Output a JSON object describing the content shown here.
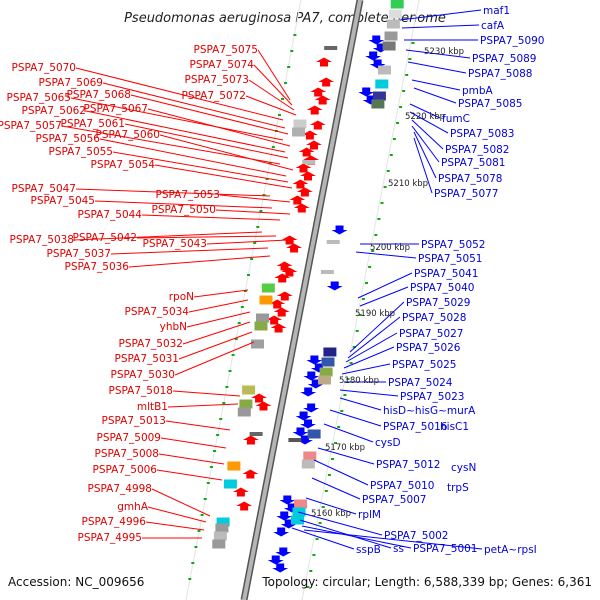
{
  "title": "Pseudomonas aeruginosa PA7, complete genome",
  "footer": {
    "accession": "Accession: NC_009656",
    "summary": "Topology: circular; Length: 6,588,339 bp; Genes: 6,361"
  },
  "colors": {
    "left_strand": "#ff0000",
    "right_strand": "#0000ff",
    "backbone": "#888888",
    "tick": "#11aa11"
  },
  "kbp_markers": [
    "5160 kbp",
    "5170 kbp",
    "5180 kbp",
    "5190 kbp",
    "5200 kbp",
    "5210 kbp",
    "5220 kbp",
    "5230 kbp"
  ],
  "left_labels": [
    "PSPA7_5075",
    "PSPA7_5074",
    "PSPA7_5073",
    "PSPA7_5072",
    "PSPA7_5070",
    "PSPA7_5069",
    "PSPA7_5068",
    "PSPA7_5065",
    "PSPA7_5067",
    "PSPA7_5062",
    "PSPA7_5061",
    "PSPA7_5057",
    "PSPA7_5060",
    "PSPA7_5056",
    "PSPA7_5055",
    "PSPA7_5054",
    "PSPA7_5047",
    "PSPA7_5053",
    "PSPA7_5045",
    "PSPA7_5050",
    "PSPA7_5044",
    "PSPA7_5038",
    "PSPA7_5042",
    "PSPA7_5043",
    "PSPA7_5037",
    "PSPA7_5036",
    "rpoN",
    "PSPA7_5034",
    "yhbN",
    "PSPA7_5032",
    "PSPA7_5031",
    "PSPA7_5030",
    "PSPA7_5018",
    "mltB1",
    "PSPA7_5013",
    "PSPA7_5009",
    "PSPA7_5008",
    "PSPA7_5006",
    "PSPA7_4998",
    "gmhA",
    "PSPA7_4996",
    "PSPA7_4995"
  ],
  "right_labels": [
    "maf1",
    "cafA",
    "PSPA7_5090",
    "PSPA7_5089",
    "PSPA7_5088",
    "pmbA",
    "PSPA7_5085",
    "fumC",
    "PSPA7_5083",
    "PSPA7_5082",
    "PSPA7_5081",
    "PSPA7_5078",
    "PSPA7_5077",
    "PSPA7_5052",
    "PSPA7_5051",
    "PSPA7_5041",
    "PSPA7_5040",
    "PSPA7_5029",
    "PSPA7_5028",
    "PSPA7_5027",
    "PSPA7_5026",
    "PSPA7_5025",
    "PSPA7_5024",
    "PSPA7_5023",
    "hisD~hisG~murA",
    "PSPA7_5016",
    "hisC1",
    "cysD",
    "PSPA7_5012",
    "cysN",
    "PSPA7_5010",
    "trpS",
    "PSPA7_5007",
    "rplM",
    "PSPA7_5002",
    "ss",
    "PSPA7_5001",
    "petA~rpsI",
    "sspB"
  ]
}
